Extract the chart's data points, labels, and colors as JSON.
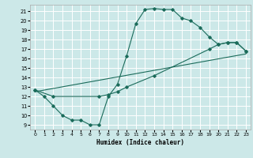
{
  "xlabel": "Humidex (Indice chaleur)",
  "bg_color": "#cce8e8",
  "grid_color": "#ffffff",
  "line_color": "#1a6b5a",
  "xlim": [
    -0.5,
    23.5
  ],
  "ylim": [
    8.5,
    21.7
  ],
  "xticks": [
    0,
    1,
    2,
    3,
    4,
    5,
    6,
    7,
    8,
    9,
    10,
    11,
    12,
    13,
    14,
    15,
    16,
    17,
    18,
    19,
    20,
    21,
    22,
    23
  ],
  "yticks": [
    9,
    10,
    11,
    12,
    13,
    14,
    15,
    16,
    17,
    18,
    19,
    20,
    21
  ],
  "line1_x": [
    0,
    1,
    2,
    3,
    4,
    5,
    6,
    7,
    8,
    9,
    10,
    11,
    12,
    13,
    14,
    15,
    16,
    17,
    18,
    19,
    20,
    21,
    22,
    23
  ],
  "line1_y": [
    12.7,
    12.0,
    11.0,
    10.0,
    9.5,
    9.5,
    9.0,
    9.0,
    12.0,
    13.3,
    16.3,
    19.7,
    21.2,
    21.3,
    21.2,
    21.2,
    20.3,
    20.0,
    19.3,
    18.3,
    17.5,
    17.7,
    17.7,
    16.8
  ],
  "line2_x": [
    0,
    2,
    7,
    8,
    9,
    10,
    13,
    19,
    20,
    21,
    22,
    23
  ],
  "line2_y": [
    12.7,
    12.0,
    12.0,
    12.2,
    12.5,
    13.0,
    14.2,
    17.0,
    17.5,
    17.7,
    17.7,
    16.8
  ],
  "line3_x": [
    0,
    23
  ],
  "line3_y": [
    12.5,
    16.5
  ]
}
